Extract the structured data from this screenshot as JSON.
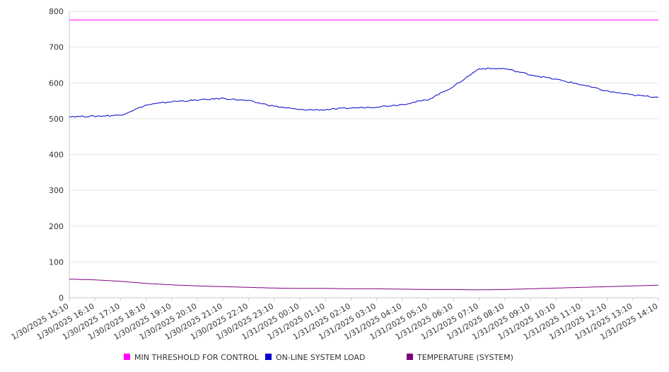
{
  "chart_data": {
    "type": "line",
    "title": "",
    "xlabel": "",
    "ylabel": "",
    "ylim": [
      0,
      800
    ],
    "yticks": [
      "0",
      "100",
      "200",
      "300",
      "400",
      "500",
      "600",
      "700",
      "800"
    ],
    "grid": true,
    "legend_position": "bottom",
    "categories": [
      "1/30/2025 15:10",
      "1/30/2025 16:10",
      "1/30/2025 17:10",
      "1/30/2025 18:10",
      "1/30/2025 19:10",
      "1/30/2025 20:10",
      "1/30/2025 21:10",
      "1/30/2025 22:10",
      "1/30/2025 23:10",
      "1/31/2025 00:10",
      "1/31/2025 01:10",
      "1/31/2025 02:10",
      "1/31/2025 03:10",
      "1/31/2025 04:10",
      "1/31/2025 05:10",
      "1/31/2025 06:10",
      "1/31/2025 07:10",
      "1/31/2025 08:10",
      "1/31/2025 09:10",
      "1/31/2025 10:10",
      "1/31/2025 11:10",
      "1/31/2025 12:10",
      "1/31/2025 13:10",
      "1/31/2025 14:10"
    ],
    "series": [
      {
        "name": "MIN THRESHOLD FOR CONTROL",
        "color": "#ff00ff",
        "values": [
          776,
          776,
          776,
          776,
          776,
          776,
          776,
          776,
          776,
          776,
          776,
          776,
          776,
          776,
          776,
          776,
          776,
          776,
          776,
          776,
          776,
          776,
          776,
          776
        ]
      },
      {
        "name": "ON-LINE SYSTEM LOAD",
        "color": "#0000cc",
        "values": [
          506,
          507,
          510,
          538,
          548,
          552,
          557,
          550,
          535,
          525,
          525,
          530,
          533,
          540,
          553,
          590,
          640,
          640,
          623,
          610,
          595,
          577,
          566,
          560
        ]
      },
      {
        "name": "TEMPERATURE (SYSTEM)",
        "color": "#800080",
        "values": [
          52,
          50,
          46,
          40,
          36,
          33,
          31,
          29,
          27,
          26,
          26,
          25,
          25,
          24,
          23,
          23,
          22,
          23,
          25,
          27,
          29,
          31,
          33,
          35
        ]
      }
    ]
  }
}
